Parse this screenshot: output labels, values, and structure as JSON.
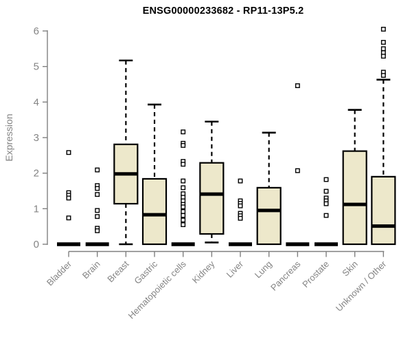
{
  "chart_data": {
    "type": "boxplot",
    "title": "ENSG00000233682 - RP11-13P5.2",
    "ylabel": "Expression",
    "xlabel": "",
    "ylim": [
      0,
      6
    ],
    "yticks": [
      0,
      1,
      2,
      3,
      4,
      5,
      6
    ],
    "grid": false,
    "legend": "none",
    "colors": {
      "box_fill": "#EDE8CB",
      "box_border": "#000000",
      "median": "#000000",
      "whisker": "#000000",
      "outlier_fill": "#ffffff",
      "outlier_border": "#000000",
      "axis": "#7f7f7f",
      "tick_label": "#848484",
      "title": "#000000",
      "background": "#ffffff"
    },
    "categories": [
      "Bladder",
      "Brain",
      "Breast",
      "Gastric",
      "Hematopoietic cells",
      "Kidney",
      "Liver",
      "Lung",
      "Pancreas",
      "Prostate",
      "Skin",
      "Unknown / Other"
    ],
    "series": [
      {
        "category": "Bladder",
        "q1": 0,
        "median": 0,
        "q3": 0,
        "whisker_low": 0,
        "whisker_high": 0,
        "outliers": [
          2.58,
          1.45,
          1.38,
          1.3,
          0.74
        ]
      },
      {
        "category": "Brain",
        "q1": 0,
        "median": 0,
        "q3": 0,
        "whisker_low": 0,
        "whisker_high": 0,
        "outliers": [
          2.09,
          1.65,
          1.57,
          1.4,
          0.95,
          0.78,
          0.45,
          0.38
        ]
      },
      {
        "category": "Breast",
        "q1": 1.14,
        "median": 1.98,
        "q3": 2.81,
        "whisker_low": 0,
        "whisker_high": 5.17,
        "outliers": []
      },
      {
        "category": "Gastric",
        "q1": 0,
        "median": 0.83,
        "q3": 1.84,
        "whisker_low": 0,
        "whisker_high": 3.93,
        "outliers": []
      },
      {
        "category": "Hematopoietic cells",
        "q1": 0,
        "median": 0,
        "q3": 0,
        "whisker_low": 0,
        "whisker_high": 0,
        "outliers": [
          3.16,
          2.84,
          2.78,
          2.33,
          2.25,
          1.78,
          1.59,
          1.42,
          1.32,
          1.22,
          1.12,
          1.05,
          0.92,
          0.81,
          0.68,
          0.55
        ]
      },
      {
        "category": "Kidney",
        "q1": 0.29,
        "median": 1.41,
        "q3": 2.29,
        "whisker_low": 0.05,
        "whisker_high": 3.45,
        "outliers": []
      },
      {
        "category": "Liver",
        "q1": 0,
        "median": 0,
        "q3": 0,
        "whisker_low": 0,
        "whisker_high": 0,
        "outliers": [
          1.78,
          1.22,
          1.15,
          1.08,
          0.87,
          0.8,
          0.73
        ]
      },
      {
        "category": "Lung",
        "q1": 0,
        "median": 0.95,
        "q3": 1.59,
        "whisker_low": 0,
        "whisker_high": 3.14,
        "outliers": []
      },
      {
        "category": "Pancreas",
        "q1": 0,
        "median": 0,
        "q3": 0,
        "whisker_low": 0,
        "whisker_high": 0,
        "outliers": [
          4.46,
          2.07
        ]
      },
      {
        "category": "Prostate",
        "q1": 0,
        "median": 0,
        "q3": 0,
        "whisker_low": 0,
        "whisker_high": 0,
        "outliers": [
          1.82,
          1.49,
          1.3,
          1.22,
          1.14,
          0.81
        ]
      },
      {
        "category": "Skin",
        "q1": 0,
        "median": 1.12,
        "q3": 2.62,
        "whisker_low": 0,
        "whisker_high": 3.78,
        "outliers": []
      },
      {
        "category": "Unknown / Other",
        "q1": 0,
        "median": 0.51,
        "q3": 1.9,
        "whisker_low": 0,
        "whisker_high": 4.63,
        "outliers": [
          6.05,
          5.68,
          5.5,
          5.39,
          5.29,
          4.84,
          4.75
        ]
      }
    ]
  }
}
